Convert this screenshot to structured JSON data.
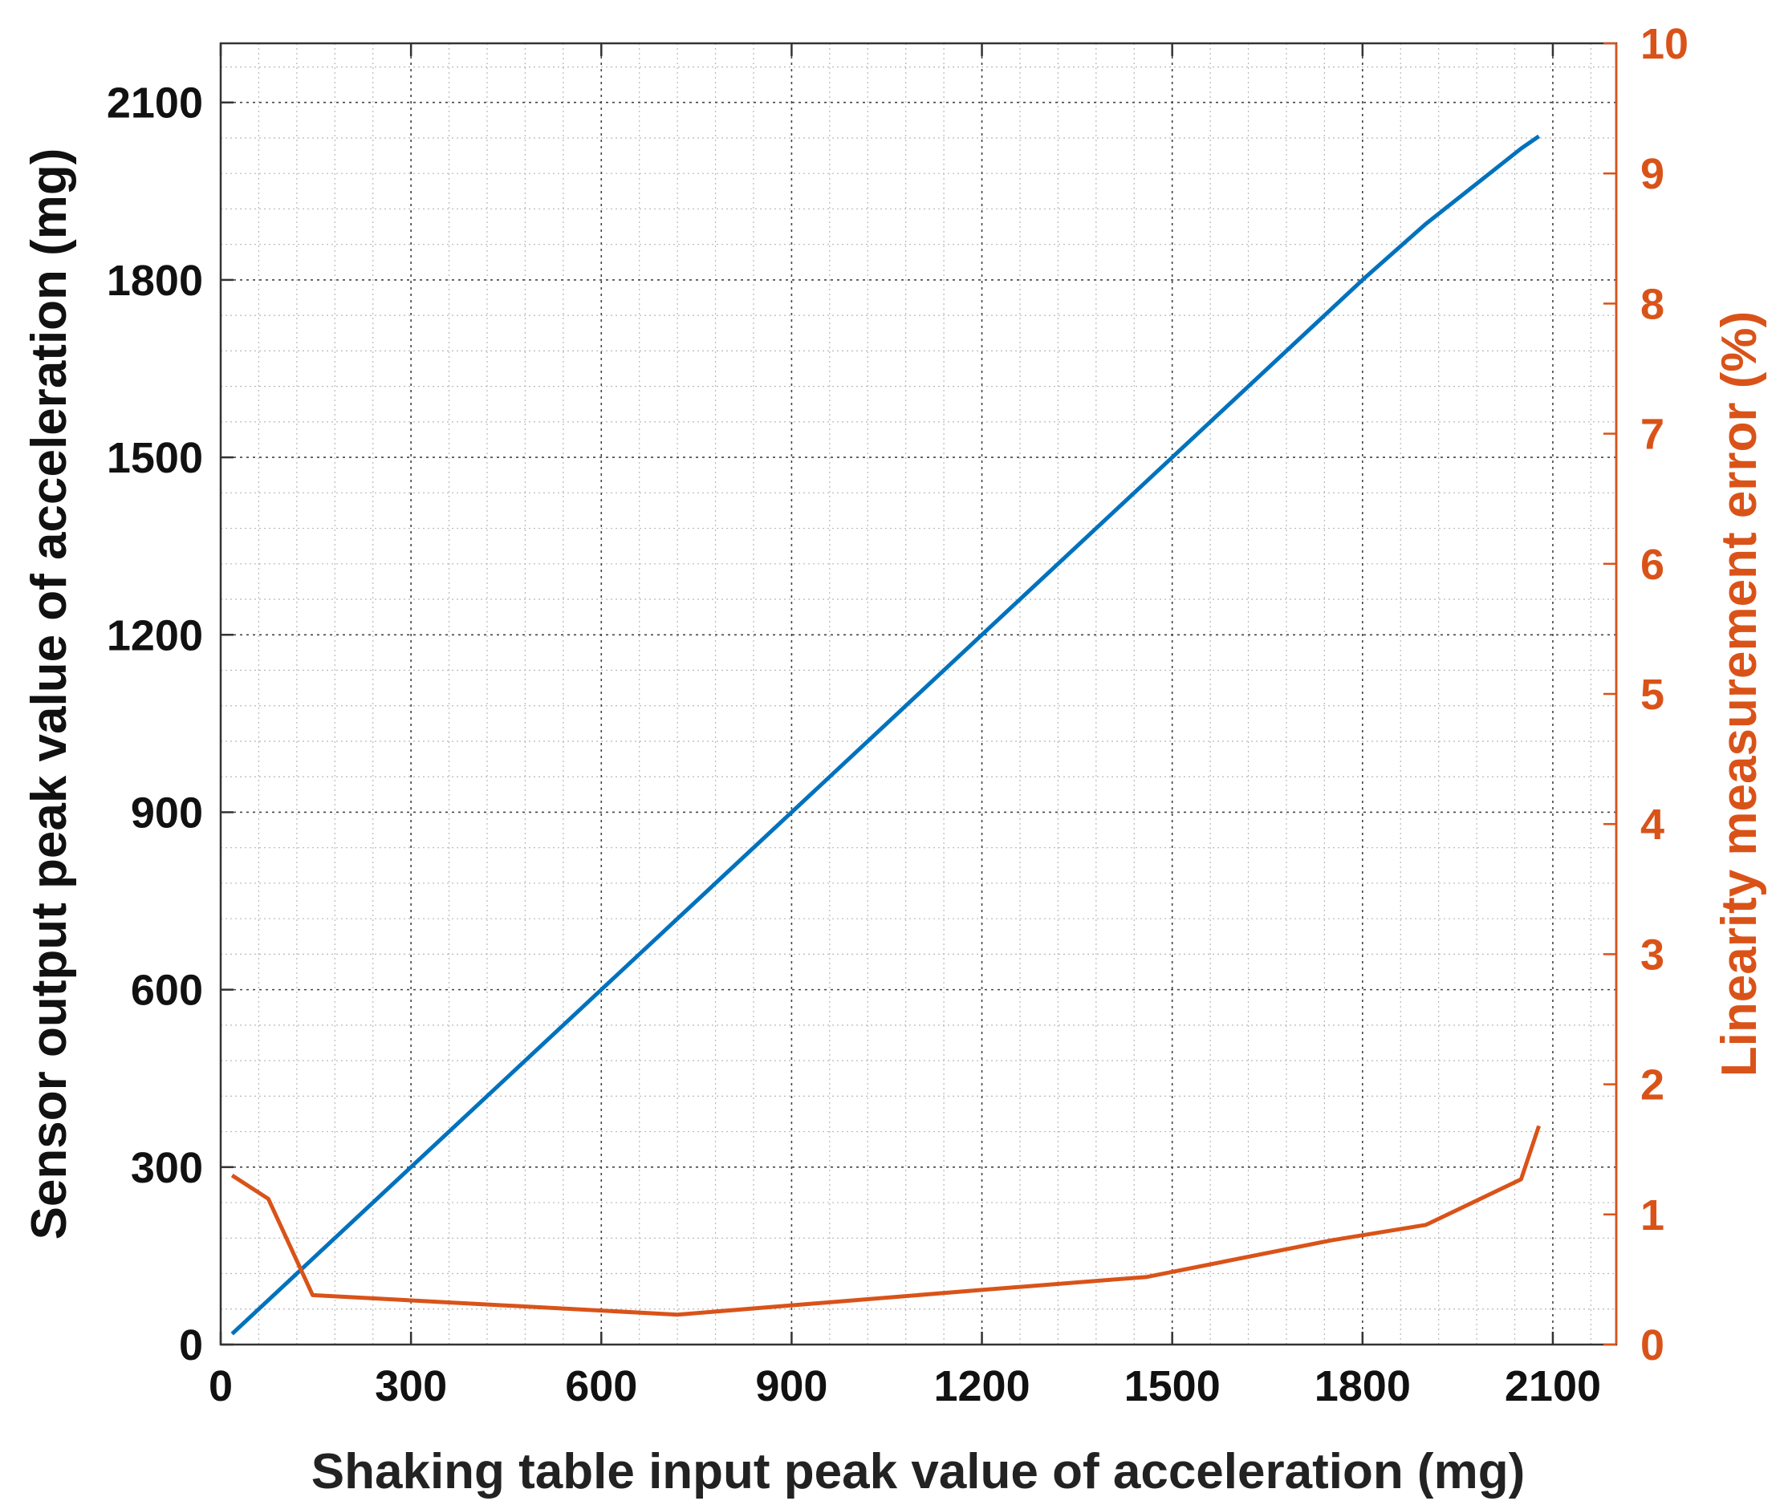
{
  "chart_data": {
    "type": "line",
    "title": "",
    "xlabel": "Shaking table input peak value of acceleration (mg)",
    "ylabel": "Sensor output peak value of acceleration (mg)",
    "y2label": "Linearity measurement error (%)",
    "xlim": [
      0,
      2200
    ],
    "ylim": [
      0,
      2200
    ],
    "y2lim": [
      0,
      10
    ],
    "x_ticks": [
      "0",
      "300",
      "600",
      "900",
      "1200",
      "1500",
      "1800",
      "2100"
    ],
    "y_ticks": [
      "0",
      "300",
      "600",
      "900",
      "1200",
      "1500",
      "1800",
      "2100"
    ],
    "y2_ticks": [
      "0",
      "1",
      "2",
      "3",
      "4",
      "5",
      "6",
      "7",
      "8",
      "9",
      "10"
    ],
    "grid": true,
    "minor_grid": true,
    "legend": "none",
    "series": [
      {
        "axis": "left",
        "color": "#0072BD",
        "points": [
          [
            18,
            18
          ],
          [
            75,
            75
          ],
          [
            145,
            145
          ],
          [
            300,
            300
          ],
          [
            600,
            600
          ],
          [
            720,
            720
          ],
          [
            900,
            900
          ],
          [
            1200,
            1200
          ],
          [
            1460,
            1460
          ],
          [
            1500,
            1500
          ],
          [
            1750,
            1750
          ],
          [
            1800,
            1800
          ],
          [
            1900,
            1895
          ],
          [
            2050,
            2022
          ],
          [
            2078,
            2043
          ]
        ]
      },
      {
        "axis": "right",
        "color": "#D95319",
        "points": [
          [
            18,
            1.3
          ],
          [
            75,
            1.12
          ],
          [
            145,
            0.38
          ],
          [
            720,
            0.23
          ],
          [
            1200,
            0.42
          ],
          [
            1460,
            0.52
          ],
          [
            1750,
            0.8
          ],
          [
            1900,
            0.92
          ],
          [
            2050,
            1.27
          ],
          [
            2078,
            1.68
          ]
        ]
      }
    ]
  },
  "colors": {
    "left_axis": "#111111",
    "right_axis": "#D95319",
    "grid": "#b8b8b8"
  }
}
